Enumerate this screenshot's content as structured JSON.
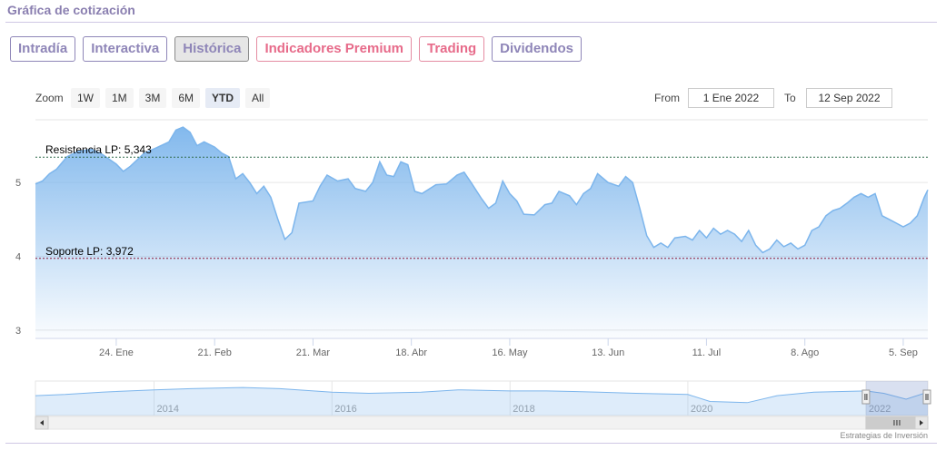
{
  "header": {
    "title": "Gráfica de cotización"
  },
  "tabs": [
    {
      "label": "Intradía",
      "style": "normal"
    },
    {
      "label": "Interactiva",
      "style": "normal"
    },
    {
      "label": "Histórica",
      "style": "active"
    },
    {
      "label": "Indicadores Premium",
      "style": "premium"
    },
    {
      "label": "Trading",
      "style": "premium"
    },
    {
      "label": "Dividendos",
      "style": "normal"
    }
  ],
  "range_selector": {
    "zoom_label": "Zoom",
    "buttons": [
      "1W",
      "1M",
      "3M",
      "6M",
      "YTD",
      "All"
    ],
    "selected": "YTD",
    "from_label": "From",
    "from_value": "1 Ene 2022",
    "to_label": "To",
    "to_value": "12 Sep 2022"
  },
  "chart_data": {
    "type": "area",
    "x_start": "2022-01-01",
    "x_end": "2022-09-12",
    "x_ticks": [
      {
        "date": "2022-01-24",
        "label": "24. Ene"
      },
      {
        "date": "2022-02-21",
        "label": "21. Feb"
      },
      {
        "date": "2022-03-21",
        "label": "21. Mar"
      },
      {
        "date": "2022-04-18",
        "label": "18. Abr"
      },
      {
        "date": "2022-05-16",
        "label": "16. May"
      },
      {
        "date": "2022-06-13",
        "label": "13. Jun"
      },
      {
        "date": "2022-07-11",
        "label": "11. Jul"
      },
      {
        "date": "2022-08-08",
        "label": "8. Ago"
      },
      {
        "date": "2022-09-05",
        "label": "5. Sep"
      }
    ],
    "y_ticks": [
      3,
      4,
      5
    ],
    "ylim": [
      2.9,
      5.85
    ],
    "color": "#7cb5ec",
    "series": [
      {
        "values": [
          [
            "2022-01-01",
            4.98
          ],
          [
            "2022-01-03",
            5.02
          ],
          [
            "2022-01-05",
            5.12
          ],
          [
            "2022-01-07",
            5.18
          ],
          [
            "2022-01-10",
            5.35
          ],
          [
            "2022-01-13",
            5.42
          ],
          [
            "2022-01-17",
            5.45
          ],
          [
            "2022-01-20",
            5.38
          ],
          [
            "2022-01-24",
            5.25
          ],
          [
            "2022-01-26",
            5.15
          ],
          [
            "2022-01-28",
            5.22
          ],
          [
            "2022-02-01",
            5.4
          ],
          [
            "2022-02-04",
            5.46
          ],
          [
            "2022-02-08",
            5.55
          ],
          [
            "2022-02-10",
            5.71
          ],
          [
            "2022-02-12",
            5.75
          ],
          [
            "2022-02-14",
            5.68
          ],
          [
            "2022-02-16",
            5.5
          ],
          [
            "2022-02-18",
            5.55
          ],
          [
            "2022-02-21",
            5.48
          ],
          [
            "2022-02-23",
            5.4
          ],
          [
            "2022-02-25",
            5.35
          ],
          [
            "2022-02-27",
            5.05
          ],
          [
            "2022-03-01",
            5.12
          ],
          [
            "2022-03-03",
            5.0
          ],
          [
            "2022-03-05",
            4.85
          ],
          [
            "2022-03-07",
            4.95
          ],
          [
            "2022-03-09",
            4.8
          ],
          [
            "2022-03-11",
            4.5
          ],
          [
            "2022-03-13",
            4.23
          ],
          [
            "2022-03-15",
            4.32
          ],
          [
            "2022-03-17",
            4.72
          ],
          [
            "2022-03-21",
            4.75
          ],
          [
            "2022-03-23",
            4.95
          ],
          [
            "2022-03-25",
            5.1
          ],
          [
            "2022-03-28",
            5.02
          ],
          [
            "2022-03-31",
            5.05
          ],
          [
            "2022-04-02",
            4.92
          ],
          [
            "2022-04-05",
            4.88
          ],
          [
            "2022-04-07",
            5.0
          ],
          [
            "2022-04-09",
            5.28
          ],
          [
            "2022-04-11",
            5.1
          ],
          [
            "2022-04-13",
            5.08
          ],
          [
            "2022-04-15",
            5.28
          ],
          [
            "2022-04-17",
            5.24
          ],
          [
            "2022-04-19",
            4.88
          ],
          [
            "2022-04-21",
            4.85
          ],
          [
            "2022-04-25",
            4.97
          ],
          [
            "2022-04-28",
            4.98
          ],
          [
            "2022-05-01",
            5.1
          ],
          [
            "2022-05-03",
            5.14
          ],
          [
            "2022-05-05",
            5.0
          ],
          [
            "2022-05-08",
            4.78
          ],
          [
            "2022-05-10",
            4.65
          ],
          [
            "2022-05-12",
            4.72
          ],
          [
            "2022-05-14",
            5.02
          ],
          [
            "2022-05-16",
            4.85
          ],
          [
            "2022-05-18",
            4.75
          ],
          [
            "2022-05-20",
            4.57
          ],
          [
            "2022-05-23",
            4.56
          ],
          [
            "2022-05-26",
            4.7
          ],
          [
            "2022-05-28",
            4.72
          ],
          [
            "2022-05-30",
            4.88
          ],
          [
            "2022-06-02",
            4.82
          ],
          [
            "2022-06-04",
            4.7
          ],
          [
            "2022-06-06",
            4.85
          ],
          [
            "2022-06-08",
            4.92
          ],
          [
            "2022-06-10",
            5.12
          ],
          [
            "2022-06-13",
            5.0
          ],
          [
            "2022-06-16",
            4.95
          ],
          [
            "2022-06-18",
            5.08
          ],
          [
            "2022-06-20",
            5.0
          ],
          [
            "2022-06-22",
            4.65
          ],
          [
            "2022-06-24",
            4.28
          ],
          [
            "2022-06-26",
            4.12
          ],
          [
            "2022-06-28",
            4.18
          ],
          [
            "2022-06-30",
            4.12
          ],
          [
            "2022-07-02",
            4.25
          ],
          [
            "2022-07-05",
            4.27
          ],
          [
            "2022-07-07",
            4.22
          ],
          [
            "2022-07-09",
            4.35
          ],
          [
            "2022-07-11",
            4.25
          ],
          [
            "2022-07-13",
            4.38
          ],
          [
            "2022-07-15",
            4.3
          ],
          [
            "2022-07-17",
            4.35
          ],
          [
            "2022-07-19",
            4.3
          ],
          [
            "2022-07-21",
            4.2
          ],
          [
            "2022-07-23",
            4.35
          ],
          [
            "2022-07-25",
            4.15
          ],
          [
            "2022-07-27",
            4.05
          ],
          [
            "2022-07-29",
            4.1
          ],
          [
            "2022-07-31",
            4.22
          ],
          [
            "2022-08-02",
            4.13
          ],
          [
            "2022-08-04",
            4.18
          ],
          [
            "2022-08-06",
            4.1
          ],
          [
            "2022-08-08",
            4.15
          ],
          [
            "2022-08-10",
            4.35
          ],
          [
            "2022-08-12",
            4.4
          ],
          [
            "2022-08-14",
            4.55
          ],
          [
            "2022-08-16",
            4.62
          ],
          [
            "2022-08-18",
            4.65
          ],
          [
            "2022-08-20",
            4.72
          ],
          [
            "2022-08-22",
            4.8
          ],
          [
            "2022-08-24",
            4.85
          ],
          [
            "2022-08-26",
            4.8
          ],
          [
            "2022-08-28",
            4.85
          ],
          [
            "2022-08-30",
            4.55
          ],
          [
            "2022-09-01",
            4.5
          ],
          [
            "2022-09-03",
            4.45
          ],
          [
            "2022-09-05",
            4.4
          ],
          [
            "2022-09-07",
            4.45
          ],
          [
            "2022-09-09",
            4.55
          ],
          [
            "2022-09-11",
            4.8
          ],
          [
            "2022-09-12",
            4.9
          ]
        ]
      }
    ],
    "plot_lines": [
      {
        "label": "Resistencia LP: 5,343",
        "value": 5.343,
        "color": "#2e6b4a"
      },
      {
        "label": "Soporte LP: 3,972",
        "value": 3.972,
        "color": "#8b1a3a"
      }
    ],
    "navigator": {
      "x_start": "2012-09-01",
      "x_end": "2022-09-12",
      "labels": [
        "2014",
        "2016",
        "2018",
        "2020",
        "2022"
      ],
      "selected_from": "2022-01-01",
      "selected_to": "2022-09-12",
      "values": [
        [
          "2012-09-01",
          4.6
        ],
        [
          "2013-01-01",
          4.7
        ],
        [
          "2013-06-01",
          4.9
        ],
        [
          "2014-01-01",
          5.1
        ],
        [
          "2014-06-01",
          5.2
        ],
        [
          "2015-01-01",
          5.3
        ],
        [
          "2015-06-01",
          5.2
        ],
        [
          "2016-01-01",
          4.9
        ],
        [
          "2016-06-01",
          4.8
        ],
        [
          "2017-01-01",
          4.9
        ],
        [
          "2017-06-01",
          5.1
        ],
        [
          "2018-01-01",
          5.0
        ],
        [
          "2018-06-01",
          5.0
        ],
        [
          "2019-01-01",
          4.9
        ],
        [
          "2019-06-01",
          4.8
        ],
        [
          "2020-01-01",
          4.7
        ],
        [
          "2020-04-01",
          4.1
        ],
        [
          "2020-09-01",
          4.0
        ],
        [
          "2021-01-01",
          4.6
        ],
        [
          "2021-06-01",
          4.9
        ],
        [
          "2022-01-01",
          5.0
        ],
        [
          "2022-03-15",
          4.8
        ],
        [
          "2022-06-15",
          4.3
        ],
        [
          "2022-09-12",
          4.9
        ]
      ]
    },
    "grid": true,
    "legend": "none"
  },
  "credits": "Estrategias de Inversión"
}
